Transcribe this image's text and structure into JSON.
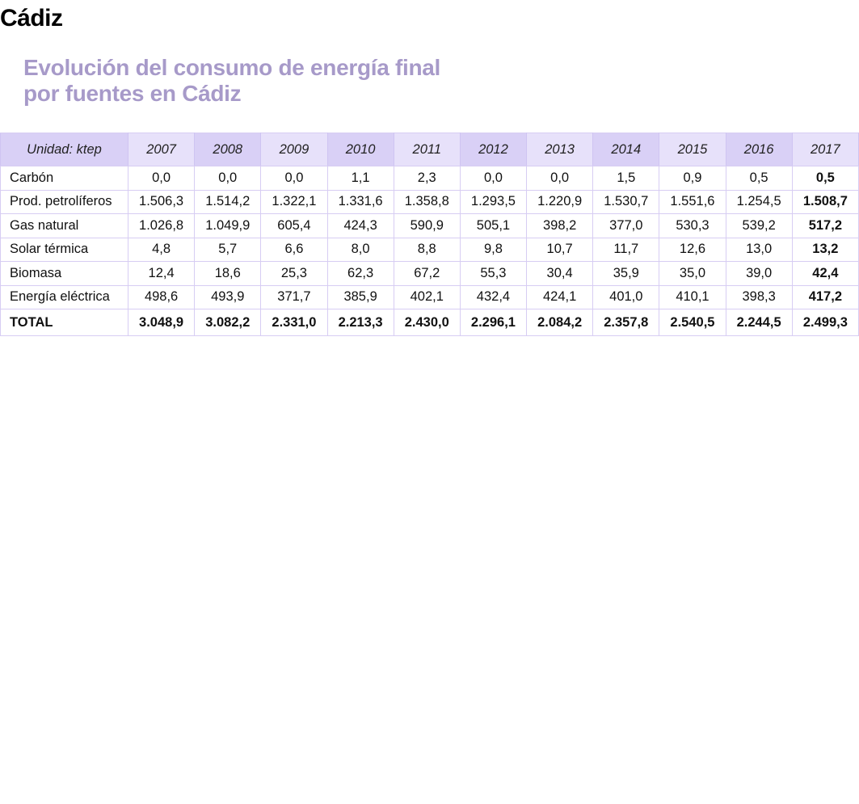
{
  "heading": "Cádiz",
  "title": "Evolución del consumo de energía final por fuentes en Cádiz",
  "table": {
    "unit_label": "Unidad: ktep",
    "years": [
      "2007",
      "2008",
      "2009",
      "2010",
      "2011",
      "2012",
      "2013",
      "2014",
      "2015",
      "2016",
      "2017"
    ],
    "rows": [
      {
        "label": "Carbón",
        "values": [
          "0,0",
          "0,0",
          "0,0",
          "1,1",
          "2,3",
          "0,0",
          "0,0",
          "1,5",
          "0,9",
          "0,5",
          "0,5"
        ]
      },
      {
        "label": "Prod. petrolíferos",
        "values": [
          "1.506,3",
          "1.514,2",
          "1.322,1",
          "1.331,6",
          "1.358,8",
          "1.293,5",
          "1.220,9",
          "1.530,7",
          "1.551,6",
          "1.254,5",
          "1.508,7"
        ]
      },
      {
        "label": "Gas natural",
        "values": [
          "1.026,8",
          "1.049,9",
          "605,4",
          "424,3",
          "590,9",
          "505,1",
          "398,2",
          "377,0",
          "530,3",
          "539,2",
          "517,2"
        ]
      },
      {
        "label": "Solar térmica",
        "values": [
          "4,8",
          "5,7",
          "6,6",
          "8,0",
          "8,8",
          "9,8",
          "10,7",
          "11,7",
          "12,6",
          "13,0",
          "13,2"
        ]
      },
      {
        "label": "Biomasa",
        "values": [
          "12,4",
          "18,6",
          "25,3",
          "62,3",
          "67,2",
          "55,3",
          "30,4",
          "35,9",
          "35,0",
          "39,0",
          "42,4"
        ]
      },
      {
        "label": "Energía eléctrica",
        "values": [
          "498,6",
          "493,9",
          "371,7",
          "385,9",
          "402,1",
          "432,4",
          "424,1",
          "401,0",
          "410,1",
          "398,3",
          "417,2"
        ]
      }
    ],
    "total": {
      "label": "TOTAL",
      "values": [
        "3.048,9",
        "3.082,2",
        "2.331,0",
        "2.213,3",
        "2.430,0",
        "2.296,1",
        "2.084,2",
        "2.357,8",
        "2.540,5",
        "2.244,5",
        "2.499,3"
      ]
    }
  },
  "colors": {
    "title": "#a79ac9",
    "header_dark": "#d9d0f6",
    "header_light": "#e7e1fa",
    "grid": "#d7cdf3"
  }
}
